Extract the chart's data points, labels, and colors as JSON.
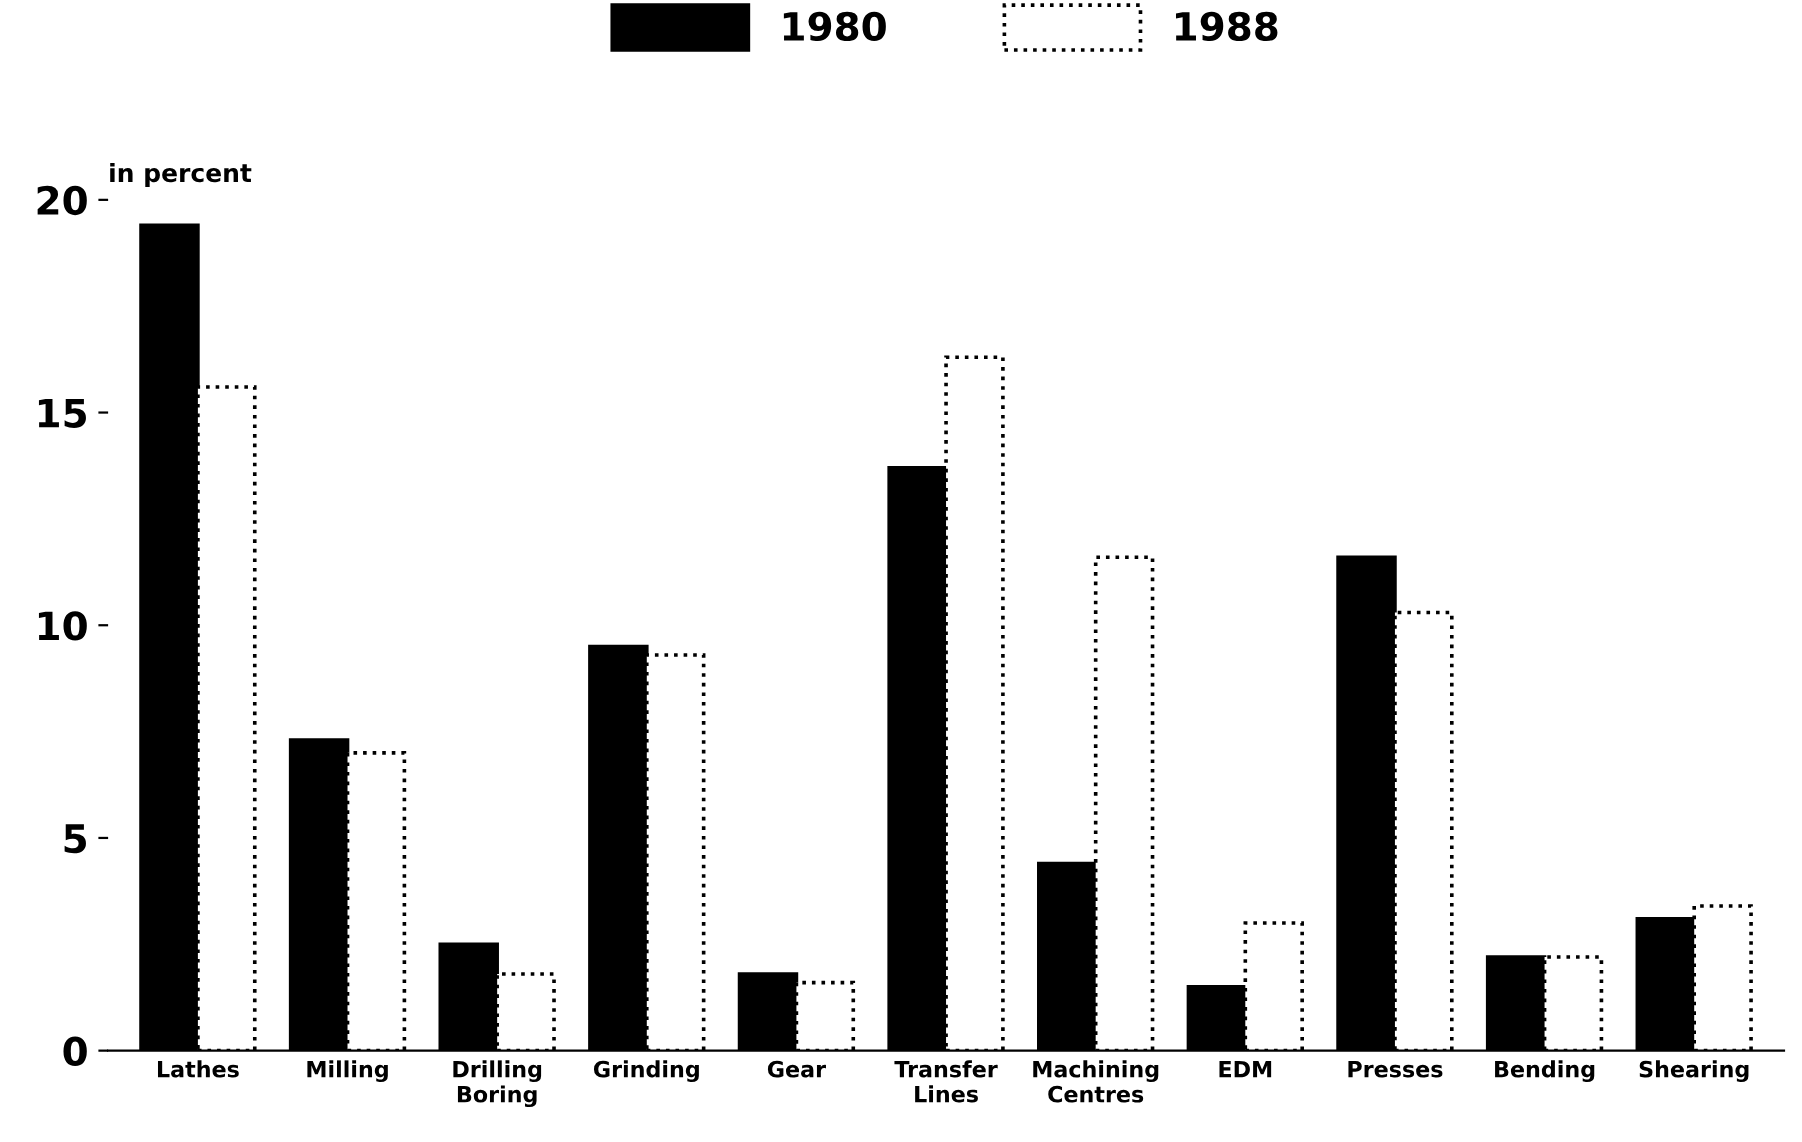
{
  "chart_data": {
    "type": "bar",
    "ylabel": "in percent",
    "categories": [
      "Lathes",
      "Milling",
      "Drilling\nBoring",
      "Grinding",
      "Gear",
      "Transfer\nLines",
      "Machining\nCentres",
      "EDM",
      "Presses",
      "Bending",
      "Shearing"
    ],
    "series": [
      {
        "name": "1980",
        "color": "#000000",
        "line_style": "solid",
        "values": [
          19.4,
          7.3,
          2.5,
          9.5,
          1.8,
          13.7,
          4.4,
          1.5,
          11.6,
          2.2,
          3.1
        ]
      },
      {
        "name": "1988",
        "color": "#ffffff",
        "line_style": "dotted",
        "values": [
          15.6,
          7.0,
          1.8,
          9.3,
          1.6,
          16.3,
          11.6,
          3.0,
          10.3,
          2.2,
          3.4
        ]
      }
    ],
    "ylim": [
      0,
      20
    ],
    "yticks": [
      0,
      5,
      10,
      15,
      20
    ],
    "grid": false,
    "legend": "top"
  }
}
